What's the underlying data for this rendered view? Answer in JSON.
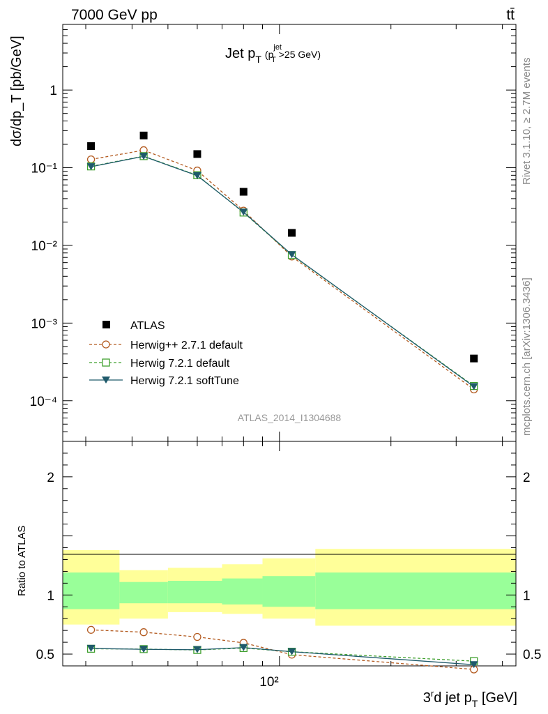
{
  "header": {
    "energy_label": "7000 GeV pp",
    "process_label": "tt̄"
  },
  "main_title": {
    "base": "Jet p",
    "sub": "T",
    "paren_open": "(p",
    "paren_sup": "jet",
    "paren_sub": "T",
    "paren_rest": ">25 GeV)"
  },
  "side_labels": {
    "rivet": "Rivet 3.1.10, ≥ 2.7M events",
    "mcplots": "mcplots.cern.ch [arXiv:1306.3436]"
  },
  "analysis_label": "ATLAS_2014_I1304688",
  "colors": {
    "data": "#000000",
    "herwigpp": "#b35a1f",
    "herwig721": "#3fa02e",
    "softtune": "#1f5a6b",
    "band_outer": "#ffff99",
    "band_inner": "#99ff99"
  },
  "chart_data": [
    {
      "type": "scatter",
      "title": "Jet pT (pT jet >25 GeV)",
      "ylabel": "dσ/dp_T [pb/GeV]",
      "xlabel": "3rd jet p_T [GeV]",
      "x_scale": "log",
      "y_scale": "log",
      "xlim": [
        26,
        435
      ],
      "ylim": [
        3e-05,
        7
      ],
      "y_ticks": [
        "10⁻⁴",
        "10⁻³",
        "10⁻²",
        "10⁻¹",
        "1"
      ],
      "x_ticks": [
        "10²"
      ],
      "legend": "bottom-left",
      "x": [
        31,
        43,
        60,
        80,
        108,
        335
      ],
      "bin_edges": [
        25,
        37,
        50,
        70,
        90,
        125,
        480
      ],
      "series": [
        {
          "name": "ATLAS",
          "values": [
            0.19,
            0.26,
            0.15,
            0.049,
            0.0145,
            0.00035
          ]
        },
        {
          "name": "Herwig++ 2.7.1 default",
          "values": [
            0.128,
            0.168,
            0.092,
            0.028,
            0.0072,
            0.00014
          ]
        },
        {
          "name": "Herwig 7.2.1 default",
          "values": [
            0.104,
            0.141,
            0.08,
            0.0265,
            0.0075,
            0.000155
          ]
        },
        {
          "name": "Herwig 7.2.1 softTune",
          "values": [
            0.103,
            0.14,
            0.079,
            0.0268,
            0.0076,
            0.000152
          ]
        }
      ]
    },
    {
      "type": "line",
      "ylabel": "Ratio to ATLAS",
      "xlabel": "3rd jet p_T [GeV]",
      "x_scale": "log",
      "xlim": [
        26,
        435
      ],
      "ylim": [
        0.4,
        2.3
      ],
      "y_ticks": [
        "0.5",
        "1",
        "2"
      ],
      "x": [
        31,
        43,
        60,
        80,
        108,
        335
      ],
      "bands": {
        "bin_edges": [
          25,
          37,
          50,
          70,
          90,
          125,
          480
        ],
        "outer_low": [
          0.75,
          0.8,
          0.855,
          0.84,
          0.8,
          0.74
        ],
        "outer_high": [
          1.38,
          1.21,
          1.23,
          1.26,
          1.31,
          1.39
        ],
        "inner_low": [
          0.88,
          0.93,
          0.93,
          0.92,
          0.9,
          0.88
        ],
        "inner_high": [
          1.19,
          1.11,
          1.12,
          1.14,
          1.16,
          1.19
        ]
      },
      "series": [
        {
          "name": "Herwig++ 2.7.1 default",
          "values": [
            0.705,
            0.685,
            0.645,
            0.595,
            0.495,
            0.37
          ]
        },
        {
          "name": "Herwig 7.2.1 default",
          "values": [
            0.545,
            0.542,
            0.535,
            0.551,
            0.52,
            0.44
          ]
        },
        {
          "name": "Herwig 7.2.1 softTune",
          "values": [
            0.548,
            0.54,
            0.537,
            0.555,
            0.52,
            0.41
          ]
        }
      ]
    }
  ]
}
